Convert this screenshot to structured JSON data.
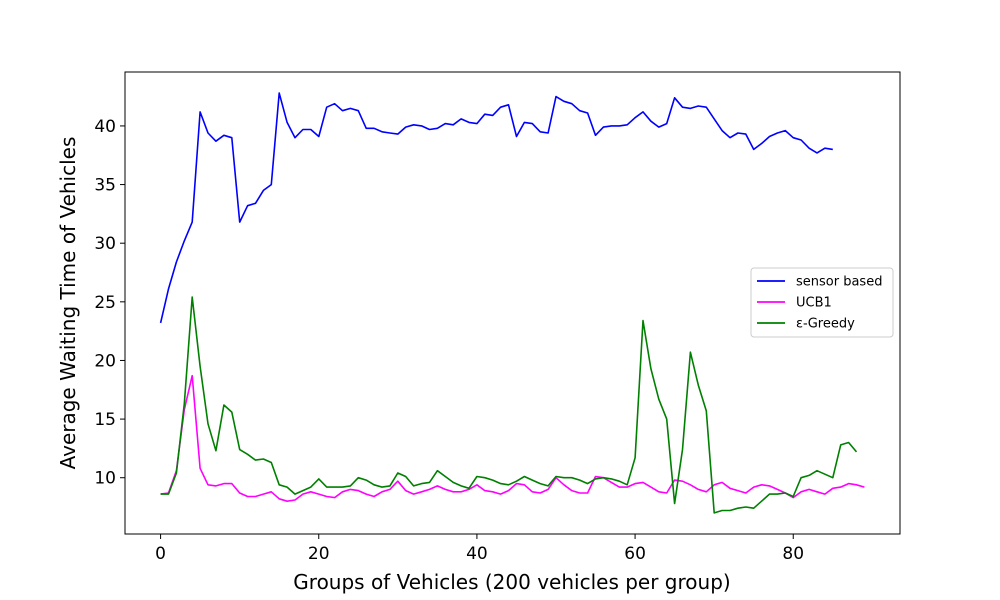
{
  "chart_data": {
    "type": "line",
    "xlabel": "Groups of Vehicles (200 vehicles per group)",
    "ylabel": "Average Waiting Time of Vehicles",
    "xlim": [
      -4.5,
      93.5
    ],
    "ylim": [
      5.2,
      44.6
    ],
    "xticks": [
      0,
      20,
      40,
      60,
      80
    ],
    "yticks": [
      10,
      15,
      20,
      25,
      30,
      35,
      40
    ],
    "grid": false,
    "legend_position": "center-right",
    "series": [
      {
        "name": "sensor based",
        "color": "#0000ff",
        "x": [
          0,
          1,
          2,
          3,
          4,
          5,
          6,
          7,
          8,
          9,
          10,
          11,
          12,
          13,
          14,
          15,
          16,
          17,
          18,
          19,
          20,
          21,
          22,
          23,
          24,
          25,
          26,
          27,
          28,
          29,
          30,
          31,
          32,
          33,
          34,
          35,
          36,
          37,
          38,
          39,
          40,
          41,
          42,
          43,
          44,
          45,
          46,
          47,
          48,
          49,
          50,
          51,
          52,
          53,
          54,
          55,
          56,
          57,
          58,
          59,
          60,
          61,
          62,
          63,
          64,
          65,
          66,
          67,
          68,
          69,
          70,
          71,
          72,
          73,
          74,
          75,
          76,
          77,
          78,
          79,
          80,
          81,
          82,
          83,
          84,
          85
        ],
        "values": [
          23.2,
          26.1,
          28.4,
          30.2,
          31.8,
          41.2,
          39.4,
          38.7,
          39.2,
          39.0,
          31.8,
          33.2,
          33.4,
          34.5,
          35.0,
          42.8,
          40.3,
          39.0,
          39.7,
          39.7,
          39.1,
          41.6,
          41.9,
          41.3,
          41.5,
          41.3,
          39.8,
          39.8,
          39.5,
          39.4,
          39.3,
          39.9,
          40.1,
          40.0,
          39.7,
          39.8,
          40.2,
          40.1,
          40.6,
          40.3,
          40.2,
          41.0,
          40.9,
          41.6,
          41.8,
          39.1,
          40.3,
          40.2,
          39.5,
          39.4,
          42.5,
          42.1,
          41.9,
          41.3,
          41.1,
          39.2,
          39.9,
          40.0,
          40.0,
          40.1,
          40.7,
          41.2,
          40.4,
          39.9,
          40.2,
          42.4,
          41.6,
          41.5,
          41.7,
          41.6,
          40.6,
          39.6,
          39.0,
          39.4,
          39.3,
          38.0,
          38.5,
          39.1,
          39.4,
          39.6,
          39.0,
          38.8,
          38.1,
          37.7,
          38.1,
          38.0
        ]
      },
      {
        "name": "UCB1",
        "color": "#ff00ff",
        "x": [
          0,
          1,
          2,
          3,
          4,
          5,
          6,
          7,
          8,
          9,
          10,
          11,
          12,
          13,
          14,
          15,
          16,
          17,
          18,
          19,
          20,
          21,
          22,
          23,
          24,
          25,
          26,
          27,
          28,
          29,
          30,
          31,
          32,
          33,
          34,
          35,
          36,
          37,
          38,
          39,
          40,
          41,
          42,
          43,
          44,
          45,
          46,
          47,
          48,
          49,
          50,
          51,
          52,
          53,
          54,
          55,
          56,
          57,
          58,
          59,
          60,
          61,
          62,
          63,
          64,
          65,
          66,
          67,
          68,
          69,
          70,
          71,
          72,
          73,
          74,
          75,
          76,
          77,
          78,
          79,
          80,
          81,
          82,
          83,
          84,
          85,
          86,
          87,
          88,
          89
        ],
        "values": [
          8.6,
          8.7,
          10.6,
          15.8,
          18.7,
          10.8,
          9.4,
          9.3,
          9.5,
          9.5,
          8.7,
          8.4,
          8.4,
          8.6,
          8.8,
          8.2,
          8.0,
          8.1,
          8.6,
          8.8,
          8.6,
          8.4,
          8.3,
          8.8,
          9.0,
          8.9,
          8.6,
          8.4,
          8.8,
          9.0,
          9.7,
          8.9,
          8.6,
          8.8,
          9.0,
          9.3,
          9.0,
          8.8,
          8.8,
          9.0,
          9.4,
          8.9,
          8.8,
          8.6,
          8.9,
          9.5,
          9.4,
          8.8,
          8.7,
          9.0,
          10.0,
          9.4,
          8.9,
          8.7,
          8.7,
          10.1,
          10.0,
          9.6,
          9.2,
          9.2,
          9.5,
          9.6,
          9.2,
          8.8,
          8.7,
          9.8,
          9.7,
          9.4,
          9.0,
          8.8,
          9.4,
          9.6,
          9.1,
          8.9,
          8.7,
          9.2,
          9.4,
          9.3,
          9.0,
          8.7,
          8.3,
          8.8,
          9.0,
          8.8,
          8.6,
          9.1,
          9.2,
          9.5,
          9.4,
          9.2
        ]
      },
      {
        "name": "ε-Greedy",
        "color": "#008000",
        "x": [
          0,
          1,
          2,
          3,
          4,
          5,
          6,
          7,
          8,
          9,
          10,
          11,
          12,
          13,
          14,
          15,
          16,
          17,
          18,
          19,
          20,
          21,
          22,
          23,
          24,
          25,
          26,
          27,
          28,
          29,
          30,
          31,
          32,
          33,
          34,
          35,
          36,
          37,
          38,
          39,
          40,
          41,
          42,
          43,
          44,
          45,
          46,
          47,
          48,
          49,
          50,
          51,
          52,
          53,
          54,
          55,
          56,
          57,
          58,
          59,
          60,
          61,
          62,
          63,
          64,
          65,
          66,
          67,
          68,
          69,
          70,
          71,
          72,
          73,
          74,
          75,
          76,
          77,
          78,
          79,
          80,
          81,
          82,
          83,
          84,
          85,
          86,
          87,
          88
        ],
        "values": [
          8.6,
          8.6,
          10.4,
          16.3,
          25.4,
          19.5,
          14.6,
          12.3,
          16.2,
          15.6,
          12.4,
          12.0,
          11.5,
          11.6,
          11.3,
          9.4,
          9.2,
          8.6,
          8.9,
          9.2,
          9.9,
          9.2,
          9.2,
          9.2,
          9.3,
          10.0,
          9.8,
          9.4,
          9.2,
          9.3,
          10.4,
          10.1,
          9.3,
          9.5,
          9.6,
          10.6,
          10.1,
          9.6,
          9.3,
          9.1,
          10.1,
          10.0,
          9.8,
          9.5,
          9.4,
          9.7,
          10.1,
          9.8,
          9.5,
          9.3,
          10.1,
          10.0,
          10.0,
          9.8,
          9.5,
          9.9,
          10.0,
          9.9,
          9.7,
          9.4,
          11.7,
          23.4,
          19.3,
          16.7,
          15.0,
          7.8,
          12.4,
          20.7,
          17.9,
          15.7,
          7.0,
          7.2,
          7.2,
          7.4,
          7.5,
          7.4,
          8.0,
          8.6,
          8.6,
          8.7,
          8.4,
          10.0,
          10.2,
          10.6,
          10.3,
          10.0,
          12.8,
          13.0,
          12.2
        ]
      }
    ]
  }
}
